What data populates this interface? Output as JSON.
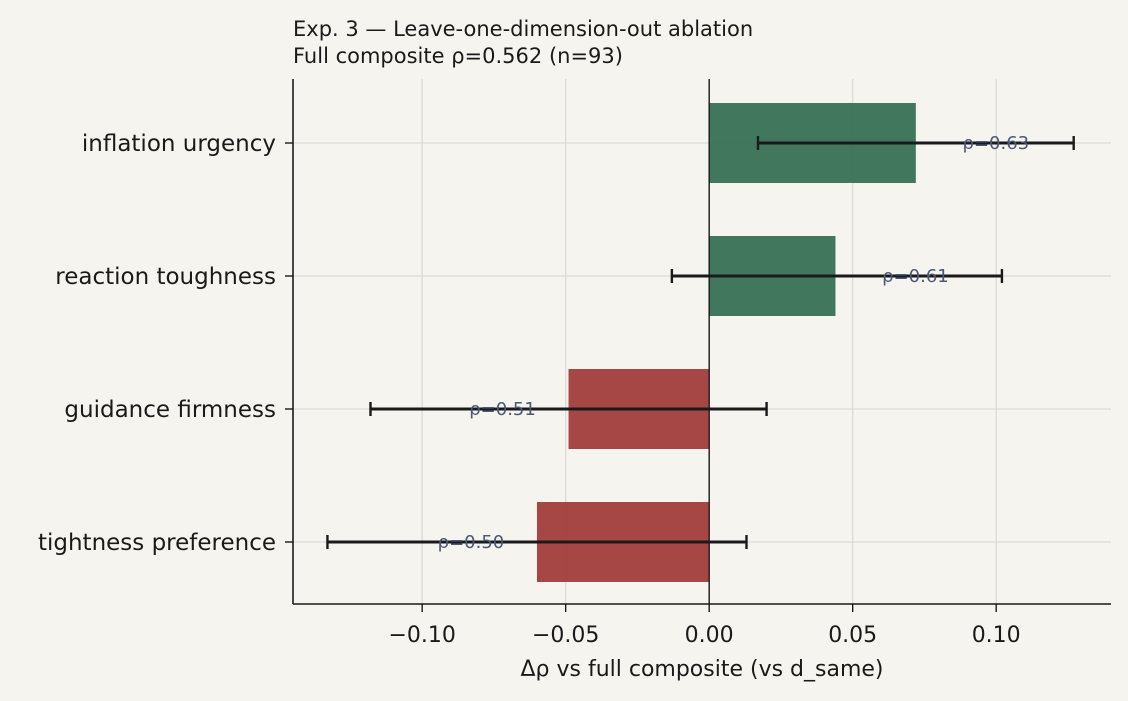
{
  "chart_data": {
    "type": "bar",
    "orientation": "horizontal",
    "title": "Exp. 3 — Leave-one-dimension-out ablation",
    "subtitle": "Full composite ρ=0.562 (n=93)",
    "xlabel": "Δρ vs full composite (vs d_same)",
    "ylabel": "",
    "xlim": [
      -0.145,
      0.14
    ],
    "xticks": [
      -0.1,
      -0.05,
      0.0,
      0.05,
      0.1
    ],
    "xtick_labels": [
      "−0.10",
      "−0.05",
      "0.00",
      "0.05",
      "0.10"
    ],
    "grid": true,
    "categories": [
      "inflation urgency",
      "reaction toughness",
      "guidance firmness",
      "tightness preference"
    ],
    "values": [
      0.072,
      0.044,
      -0.049,
      -0.06
    ],
    "error_low": [
      0.017,
      -0.013,
      -0.118,
      -0.133
    ],
    "error_high": [
      0.127,
      0.102,
      0.02,
      0.013
    ],
    "data_labels": [
      "ρ=0.63",
      "ρ=0.61",
      "ρ=0.51",
      "ρ=0.50"
    ],
    "colors": {
      "positive": "#3a7358",
      "negative": "#a3403f",
      "error_bar": "#1a1a1a",
      "grid": "#dcdad5"
    }
  }
}
